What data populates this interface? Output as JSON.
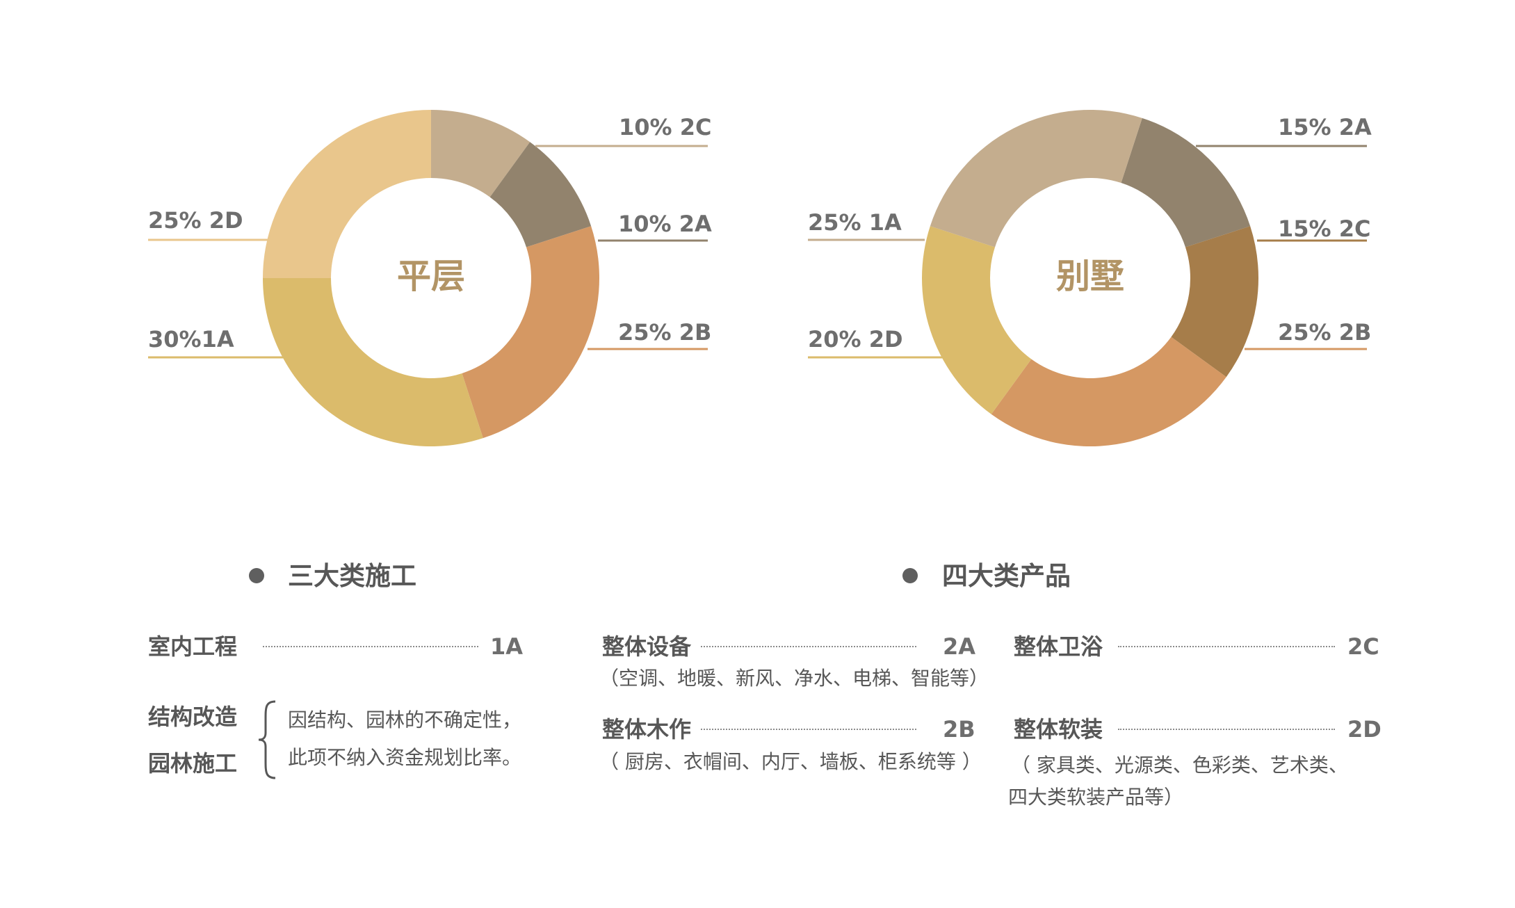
{
  "chart_data": [
    {
      "type": "pie",
      "title": "平层",
      "slices": [
        {
          "label": "10% 2C",
          "category": "2C",
          "value": 10,
          "color": "#C4AD8E"
        },
        {
          "label": "10% 2A",
          "category": "2A",
          "value": 10,
          "color": "#92836D"
        },
        {
          "label": "25% 2B",
          "category": "2B",
          "value": 25,
          "color": "#D59863"
        },
        {
          "label": "30%1A",
          "category": "1A",
          "value": 30,
          "color": "#DBBB6B"
        },
        {
          "label": "25% 2D",
          "category": "2D",
          "value": 25,
          "color": "#E9C68C"
        }
      ]
    },
    {
      "type": "pie",
      "title": "别墅",
      "slices": [
        {
          "label": "15% 2A",
          "category": "2A",
          "value": 15,
          "color": "#92836D"
        },
        {
          "label": "15% 2C",
          "category": "2C",
          "value": 15,
          "color": "#A67D4A"
        },
        {
          "label": "25% 2B",
          "category": "2B",
          "value": 25,
          "color": "#D59863"
        },
        {
          "label": "20% 2D",
          "category": "2D",
          "value": 20,
          "color": "#DBBB6B"
        },
        {
          "label": "25% 1A",
          "category": "1A",
          "value": 25,
          "color": "#C4AD8E"
        }
      ]
    }
  ],
  "construction": {
    "heading": "三大类施工",
    "interior": {
      "label": "室内工程",
      "code": "1A"
    },
    "structure_label": "结构改造",
    "garden_label": "园林施工",
    "note_line1": "因结构、园林的不确定性，",
    "note_line2": "此项不纳入资金规划比率。"
  },
  "products": {
    "heading": "四大类产品",
    "equipment": {
      "label": "整体设备",
      "code": "2A",
      "note": "（空调、地暖、新风、净水、电梯、智能等）"
    },
    "woodwork": {
      "label": "整体木作",
      "code": "2B",
      "note": "（  厨房、衣帽间、内厅、墙板、柜系统等  ）"
    },
    "bathroom": {
      "label": "整体卫浴",
      "code": "2C"
    },
    "soft": {
      "label": "整体软装",
      "code": "2D",
      "note_line1": "（  家具类、光源类、色彩类、艺术类、",
      "note_line2": "四大类软装产品等）"
    }
  }
}
